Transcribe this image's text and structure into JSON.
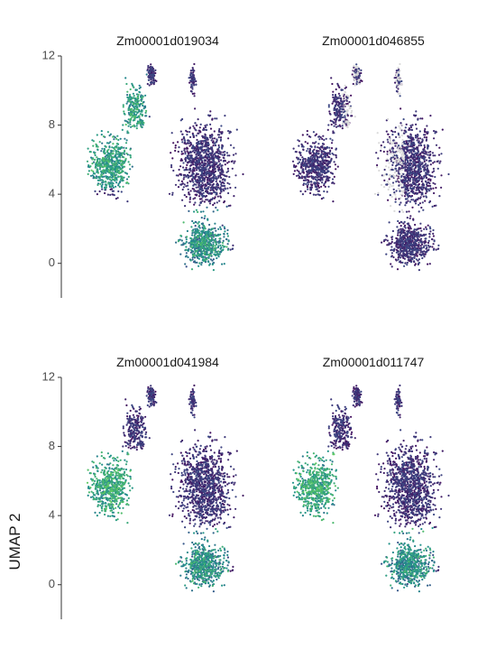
{
  "chart_data": {
    "type": "scatter",
    "ylabel": "UMAP 2",
    "xlabel": "",
    "ylim": [
      -2,
      12
    ],
    "y_ticks": [
      0,
      4,
      8,
      12
    ],
    "color_scale": {
      "name": "viridis",
      "low": "#440154",
      "mid": "#3b528b",
      "high": "#21918c",
      "max": "#5ec962",
      "zero": "#d9d9d9"
    },
    "panels": [
      {
        "title": "Zm00001d019034",
        "hotspots": [
          "left-lobe-upper",
          "bottom-middle"
        ]
      },
      {
        "title": "Zm00001d046855",
        "hotspots": [
          "right-edge-lower"
        ],
        "grey_fraction": 0.12
      },
      {
        "title": "Zm00001d041984",
        "hotspots": [
          "left-lobe-middle",
          "bottom-middle"
        ]
      },
      {
        "title": "Zm00001d011747",
        "hotspots": [
          "left-lobe-middle",
          "bottom-middle"
        ]
      }
    ]
  }
}
